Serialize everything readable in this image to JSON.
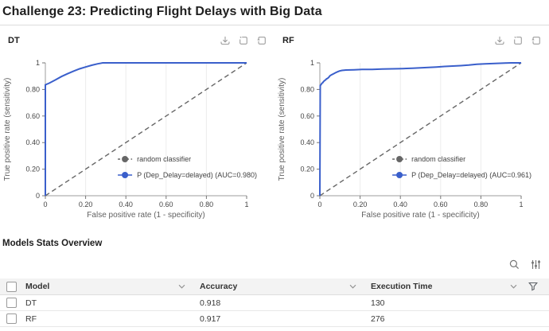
{
  "page": {
    "title": "Challenge 23: Predicting Flight Delays with Big Data"
  },
  "colors": {
    "roc_blue": "#3a5fcb",
    "random_gray": "#666666",
    "axis_gray": "#9e9e9e",
    "header_bg": "#f3f3f3"
  },
  "charts": [
    {
      "label": "DT"
    },
    {
      "label": "RF"
    }
  ],
  "chart_toolbar_icons": [
    "download",
    "box-select",
    "restore"
  ],
  "chart_data": [
    {
      "type": "line",
      "title": "DT",
      "xlabel": "False positive rate (1 - specificity)",
      "ylabel": "True positive rate (sensitivity)",
      "xlim": [
        0,
        1
      ],
      "ylim": [
        0,
        1
      ],
      "xticks": [
        0,
        0.2,
        0.4,
        0.6,
        0.8,
        1
      ],
      "yticks": [
        0,
        0.2,
        0.4,
        0.6,
        0.8,
        1
      ],
      "tick_format": [
        "0",
        "0.20",
        "0.40",
        "0.60",
        "0.80",
        "1"
      ],
      "grid": "vertical-only",
      "legend_position": "inside lower-right",
      "series": [
        {
          "name": "random classifier",
          "style": "dashed",
          "color": "#666666",
          "points": [
            [
              0,
              0
            ],
            [
              1,
              1
            ]
          ]
        },
        {
          "name": "P (Dep_Delay=delayed) (AUC=0.980)",
          "style": "solid",
          "color": "#3a5fcb",
          "points": [
            [
              0,
              0
            ],
            [
              0,
              0.835
            ],
            [
              0.02,
              0.848
            ],
            [
              0.05,
              0.872
            ],
            [
              0.08,
              0.897
            ],
            [
              0.11,
              0.918
            ],
            [
              0.14,
              0.938
            ],
            [
              0.17,
              0.955
            ],
            [
              0.2,
              0.969
            ],
            [
              0.23,
              0.982
            ],
            [
              0.26,
              0.993
            ],
            [
              0.285,
              1
            ],
            [
              1,
              1
            ]
          ]
        }
      ]
    },
    {
      "type": "line",
      "title": "RF",
      "xlabel": "False positive rate (1 - specificity)",
      "ylabel": "True positive rate (sensitivity)",
      "xlim": [
        0,
        1
      ],
      "ylim": [
        0,
        1
      ],
      "xticks": [
        0,
        0.2,
        0.4,
        0.6,
        0.8,
        1
      ],
      "yticks": [
        0,
        0.2,
        0.4,
        0.6,
        0.8,
        1
      ],
      "tick_format": [
        "0",
        "0.20",
        "0.40",
        "0.60",
        "0.80",
        "1"
      ],
      "grid": "vertical-only",
      "legend_position": "inside lower-right",
      "series": [
        {
          "name": "random classifier",
          "style": "dashed",
          "color": "#666666",
          "points": [
            [
              0,
              0
            ],
            [
              1,
              1
            ]
          ]
        },
        {
          "name": "P (Dep_Delay=delayed) (AUC=0.961)",
          "style": "solid",
          "color": "#3a5fcb",
          "points": [
            [
              0,
              0
            ],
            [
              0.002,
              0.83
            ],
            [
              0.006,
              0.836
            ],
            [
              0.01,
              0.846
            ],
            [
              0.014,
              0.85
            ],
            [
              0.018,
              0.859
            ],
            [
              0.023,
              0.866
            ],
            [
              0.028,
              0.871
            ],
            [
              0.033,
              0.879
            ],
            [
              0.04,
              0.885
            ],
            [
              0.046,
              0.894
            ],
            [
              0.05,
              0.903
            ],
            [
              0.058,
              0.91
            ],
            [
              0.068,
              0.918
            ],
            [
              0.078,
              0.926
            ],
            [
              0.088,
              0.933
            ],
            [
              0.098,
              0.939
            ],
            [
              0.11,
              0.943
            ],
            [
              0.13,
              0.946
            ],
            [
              0.17,
              0.948
            ],
            [
              0.21,
              0.95
            ],
            [
              0.26,
              0.951
            ],
            [
              0.31,
              0.953
            ],
            [
              0.36,
              0.955
            ],
            [
              0.41,
              0.957
            ],
            [
              0.46,
              0.959
            ],
            [
              0.5,
              0.962
            ],
            [
              0.54,
              0.965
            ],
            [
              0.58,
              0.969
            ],
            [
              0.62,
              0.973
            ],
            [
              0.66,
              0.976
            ],
            [
              0.7,
              0.979
            ],
            [
              0.74,
              0.983
            ],
            [
              0.78,
              0.989
            ],
            [
              0.82,
              0.993
            ],
            [
              0.87,
              0.996
            ],
            [
              0.92,
              0.999
            ],
            [
              0.95,
              1
            ],
            [
              1,
              1
            ]
          ]
        }
      ]
    }
  ],
  "stats": {
    "heading": "Models Stats Overview",
    "toolbar_icons": [
      "search",
      "filter-sliders"
    ],
    "columns": [
      "Model",
      "Accuracy",
      "Execution Time"
    ],
    "rows": [
      {
        "model": "DT",
        "accuracy": "0.918",
        "execution_time": "130"
      },
      {
        "model": "RF",
        "accuracy": "0.917",
        "execution_time": "276"
      }
    ]
  }
}
